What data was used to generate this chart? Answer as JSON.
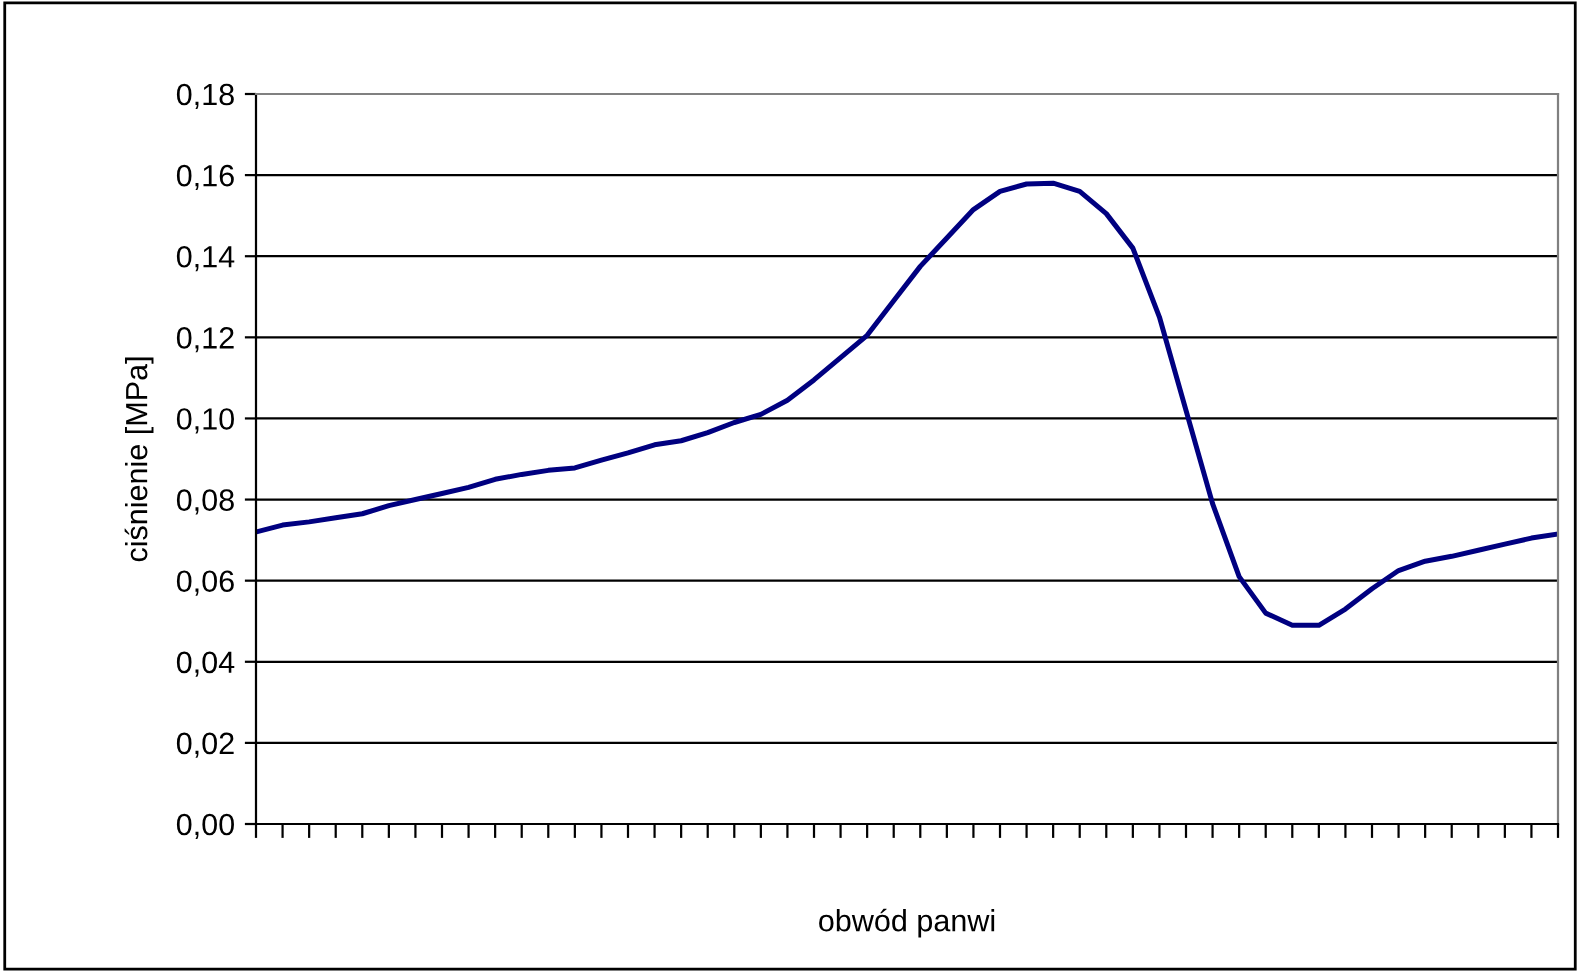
{
  "chart_data": {
    "type": "line",
    "xlabel": "obwód panwi",
    "ylabel": "ciśnienie [MPa]",
    "categories": [
      null,
      null,
      null,
      null,
      null,
      null,
      null,
      null,
      null,
      null,
      null,
      null,
      null,
      null,
      null,
      null,
      null,
      null,
      null,
      null,
      null,
      null,
      null,
      null,
      null,
      null,
      null,
      null,
      null,
      null,
      null,
      null,
      null,
      null,
      null,
      null,
      null,
      null,
      null,
      null,
      null,
      null,
      null,
      null,
      null,
      null,
      null,
      null,
      null,
      null
    ],
    "series": [
      {
        "color": "#000080",
        "values": [
          0.072,
          0.0737,
          0.0745,
          0.0755,
          0.0765,
          0.0785,
          0.08,
          0.0815,
          0.083,
          0.085,
          0.0862,
          0.0872,
          0.0878,
          0.0897,
          0.0915,
          0.0935,
          0.0945,
          0.0965,
          0.099,
          0.101,
          0.1045,
          0.1095,
          0.115,
          0.1205,
          0.129,
          0.1375,
          0.1445,
          0.1515,
          0.156,
          0.1578,
          0.158,
          0.156,
          0.1505,
          0.142,
          0.125,
          0.102,
          0.079,
          0.061,
          0.052,
          0.049,
          0.049,
          0.053,
          0.058,
          0.0625,
          0.0648,
          0.066,
          0.0675,
          0.069,
          0.0705,
          0.0715
        ]
      }
    ],
    "ylim": [
      0,
      0.18
    ],
    "yticks": [
      {
        "value": 0,
        "label": "0,00"
      },
      {
        "value": 0.02,
        "label": "0,02"
      },
      {
        "value": 0.04,
        "label": "0,04"
      },
      {
        "value": 0.06,
        "label": "0,06"
      },
      {
        "value": 0.08,
        "label": "0,08"
      },
      {
        "value": 0.1,
        "label": "0,10"
      },
      {
        "value": 0.12,
        "label": "0,12"
      },
      {
        "value": 0.14,
        "label": "0,14"
      },
      {
        "value": 0.16,
        "label": "0,16"
      },
      {
        "value": 0.18,
        "label": "0,18"
      }
    ],
    "grid": "y",
    "legend": false,
    "marker": "none",
    "line_style": "solid"
  }
}
